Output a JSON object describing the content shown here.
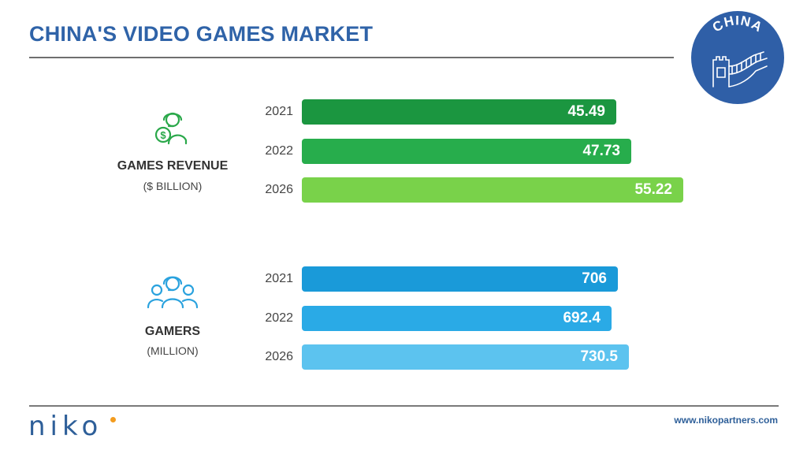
{
  "title": "CHINA'S VIDEO GAMES MARKET",
  "badge": {
    "text": "CHINA",
    "icon": "great-wall-icon",
    "color": "#2f5fa7"
  },
  "chart_data": [
    {
      "type": "bar",
      "orientation": "horizontal",
      "label": "GAMES REVENUE",
      "unit": "($ BILLION)",
      "icon": "revenue-person-dollar-icon",
      "categories": [
        "2021",
        "2022",
        "2026"
      ],
      "values": [
        45.49,
        47.73,
        55.22
      ],
      "value_labels": [
        "45.49",
        "47.73",
        "55.22"
      ],
      "colors": [
        "#1b9640",
        "#27ad4c",
        "#79d24a"
      ],
      "xlim": [
        0,
        60
      ]
    },
    {
      "type": "bar",
      "orientation": "horizontal",
      "label": "GAMERS",
      "unit": "(MILLION)",
      "icon": "gamers-group-headset-icon",
      "categories": [
        "2021",
        "2022",
        "2026"
      ],
      "values": [
        706,
        692.4,
        730.5
      ],
      "value_labels": [
        "706",
        "692.4",
        "730.5"
      ],
      "colors": [
        "#1a9ad9",
        "#2aaae6",
        "#5cc3ef"
      ],
      "xlim": [
        0,
        780
      ]
    }
  ],
  "footer": {
    "logo": "niko",
    "website": "www.nikopartners.com"
  }
}
